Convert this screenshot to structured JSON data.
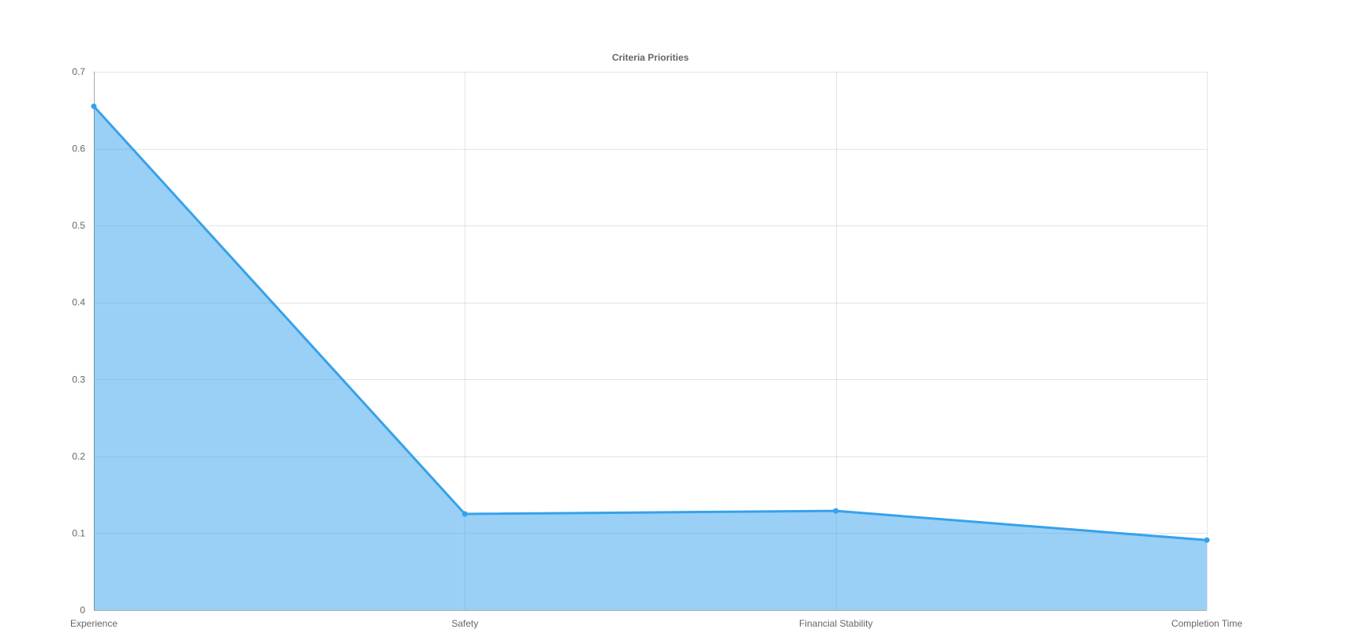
{
  "chart_data": {
    "type": "area",
    "title": "Criteria Priorities",
    "xlabel": "",
    "ylabel": "",
    "categories": [
      "Experience",
      "Safety",
      "Financial Stability",
      "Completion Time"
    ],
    "series": [
      {
        "values": [
          0.655,
          0.125,
          0.129,
          0.091
        ],
        "color": "#36a2eb",
        "fill": "rgba(54, 162, 235, 0.5)"
      }
    ],
    "ylim": [
      0,
      0.7
    ],
    "yticks": [
      "0",
      "0.1",
      "0.2",
      "0.3",
      "0.4",
      "0.5",
      "0.6",
      "0.7"
    ],
    "grid": true,
    "legend": "none"
  }
}
